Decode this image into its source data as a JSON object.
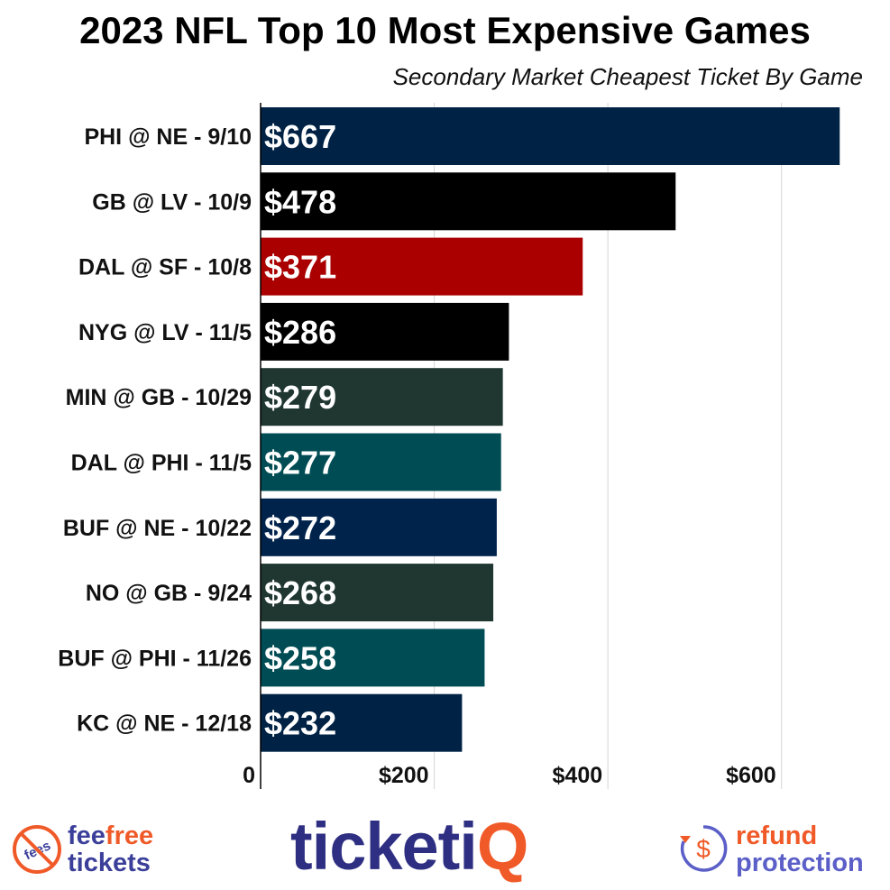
{
  "title": "2023 NFL Top 10 Most Expensive Games",
  "subtitle": "Secondary Market Cheapest Ticket By Game",
  "chart_data": {
    "type": "bar",
    "orientation": "horizontal",
    "categories": [
      "PHI @ NE - 9/10",
      "GB @ LV - 10/9",
      "DAL @ SF - 10/8",
      "NYG @ LV - 11/5",
      "MIN @ GB - 10/29",
      "DAL @ PHI - 11/5",
      "BUF @ NE - 10/22",
      "NO @ GB - 9/24",
      "BUF @ PHI - 11/26",
      "KC @ NE - 12/18"
    ],
    "values": [
      667,
      478,
      371,
      286,
      279,
      277,
      272,
      268,
      258,
      232
    ],
    "data_labels": [
      "$667",
      "$478",
      "$371",
      "$286",
      "$279",
      "$277",
      "$272",
      "$268",
      "$258",
      "$232"
    ],
    "colors": [
      "#002244",
      "#000000",
      "#aa0000",
      "#000000",
      "#203731",
      "#004c54",
      "#00234c",
      "#203731",
      "#004c54",
      "#002244"
    ],
    "xlim": [
      0,
      700
    ],
    "xticks": [
      0,
      200,
      400,
      600
    ],
    "xtick_labels": [
      "0",
      "$200",
      "$400",
      "$600"
    ],
    "grid": true,
    "xlabel": "",
    "ylabel": ""
  },
  "footer": {
    "left_line1a": "fee",
    "left_line1b": "free",
    "left_line2": "tickets",
    "badge_text": "fees",
    "brand_main": "ticketi",
    "brand_accent": "Q",
    "right_line1": "refund",
    "right_line2": "protection",
    "colors": {
      "navy": "#3b3f9a",
      "orange": "#f05a28",
      "brand": "#2e2f82",
      "purple": "#5b5fc7"
    },
    "icons": [
      "no-fees-icon",
      "refund-dollar-icon"
    ]
  }
}
